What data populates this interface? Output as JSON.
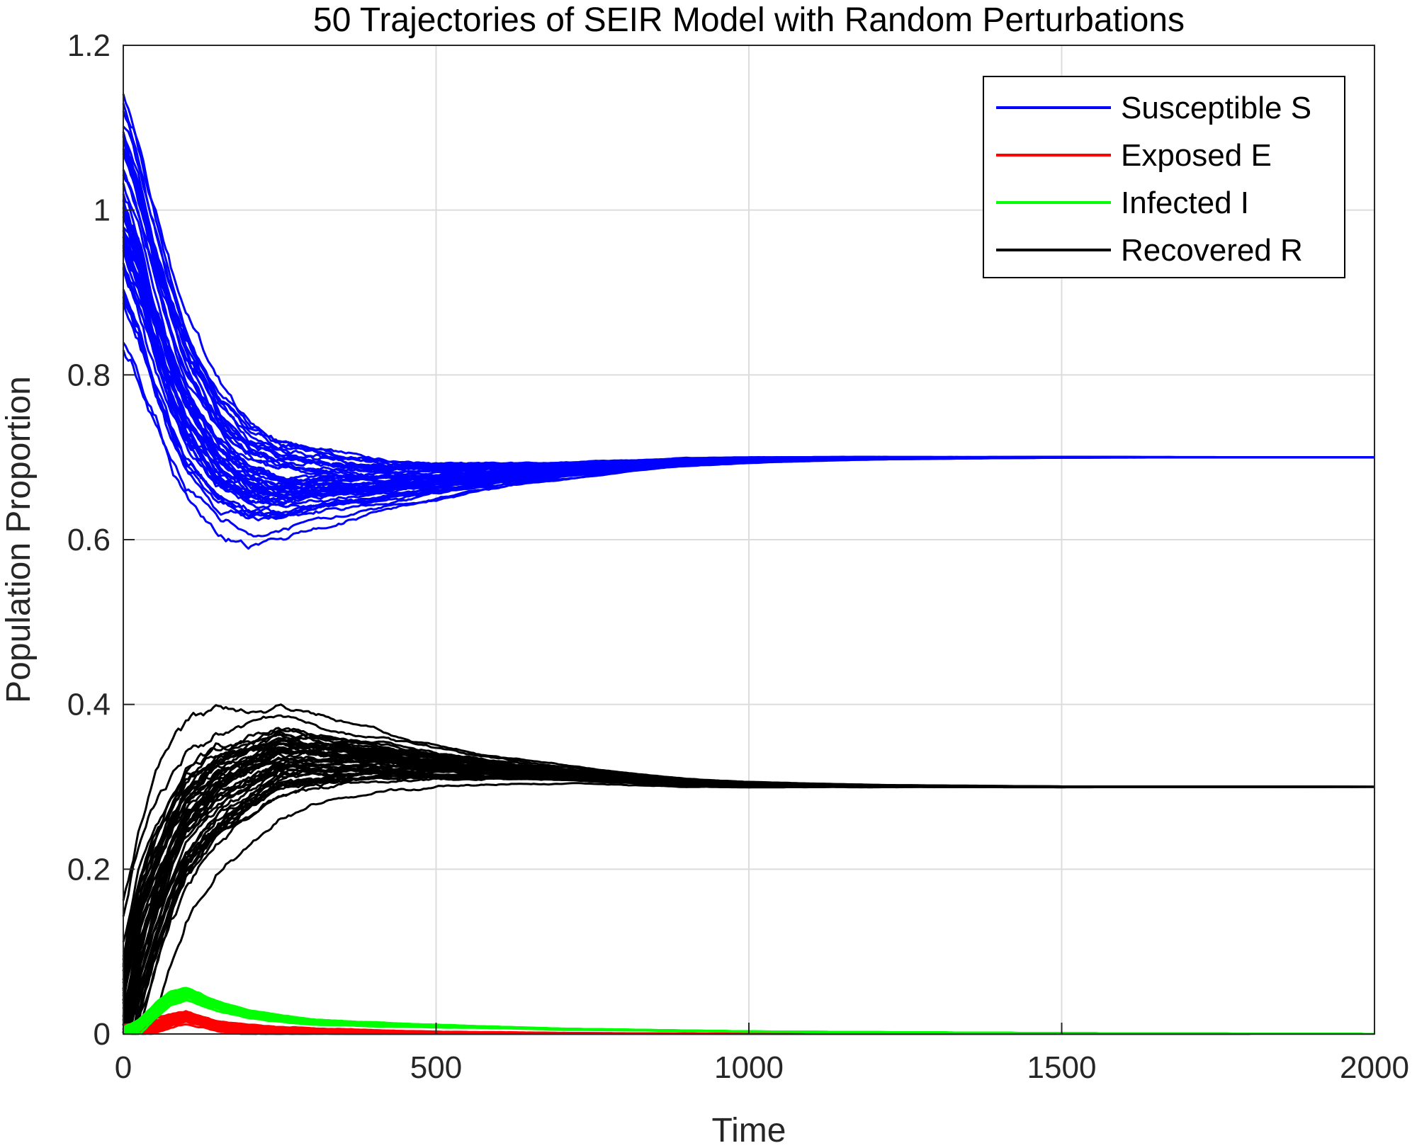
{
  "chart_data": {
    "type": "line",
    "title": "50 Trajectories of SEIR Model with Random Perturbations",
    "xlabel": "Time",
    "ylabel": "Population Proportion",
    "xlim": [
      0,
      2000
    ],
    "ylim": [
      0,
      1.2
    ],
    "xticks": [
      0,
      500,
      1000,
      1500,
      2000
    ],
    "xtick_labels": [
      "0",
      "500",
      "1000",
      "1500",
      "2000"
    ],
    "yticks": [
      0,
      0.2,
      0.4,
      0.6,
      0.8,
      1.0,
      1.2
    ],
    "ytick_labels": [
      "0",
      "0.2",
      "0.4",
      "0.6",
      "0.8",
      "1",
      "1.2"
    ],
    "grid": true,
    "legend_position": "top-right",
    "trajectories_per_series": 50,
    "series": [
      {
        "name": "Susceptible S",
        "color": "#0000ff",
        "x": [
          0,
          25,
          50,
          75,
          100,
          150,
          200,
          250,
          300,
          400,
          500,
          600,
          700,
          800,
          900,
          1000,
          1200,
          1500,
          2000
        ],
        "values": [
          1.0,
          0.95,
          0.88,
          0.82,
          0.77,
          0.71,
          0.68,
          0.67,
          0.67,
          0.67,
          0.675,
          0.68,
          0.685,
          0.69,
          0.695,
          0.697,
          0.699,
          0.7,
          0.7
        ]
      },
      {
        "name": "Exposed E",
        "color": "#ff0000",
        "x": [
          0,
          25,
          50,
          75,
          100,
          150,
          200,
          300,
          500,
          1000,
          2000
        ],
        "values": [
          0.0,
          0.005,
          0.01,
          0.015,
          0.02,
          0.01,
          0.006,
          0.003,
          0.001,
          0.0,
          0.0
        ]
      },
      {
        "name": "Infected I",
        "color": "#00ff00",
        "x": [
          0,
          25,
          50,
          75,
          100,
          150,
          200,
          300,
          400,
          500,
          700,
          1000,
          1500,
          2000
        ],
        "values": [
          0.0,
          0.01,
          0.03,
          0.045,
          0.05,
          0.035,
          0.025,
          0.015,
          0.012,
          0.01,
          0.006,
          0.003,
          0.001,
          0.0
        ]
      },
      {
        "name": "Recovered R",
        "color": "#000000",
        "x": [
          0,
          25,
          50,
          75,
          100,
          150,
          200,
          250,
          300,
          400,
          500,
          600,
          700,
          800,
          900,
          1000,
          1200,
          1500,
          2000
        ],
        "values": [
          0.0,
          0.1,
          0.16,
          0.21,
          0.25,
          0.29,
          0.31,
          0.33,
          0.33,
          0.33,
          0.325,
          0.32,
          0.315,
          0.31,
          0.305,
          0.303,
          0.301,
          0.3,
          0.3
        ]
      }
    ]
  }
}
